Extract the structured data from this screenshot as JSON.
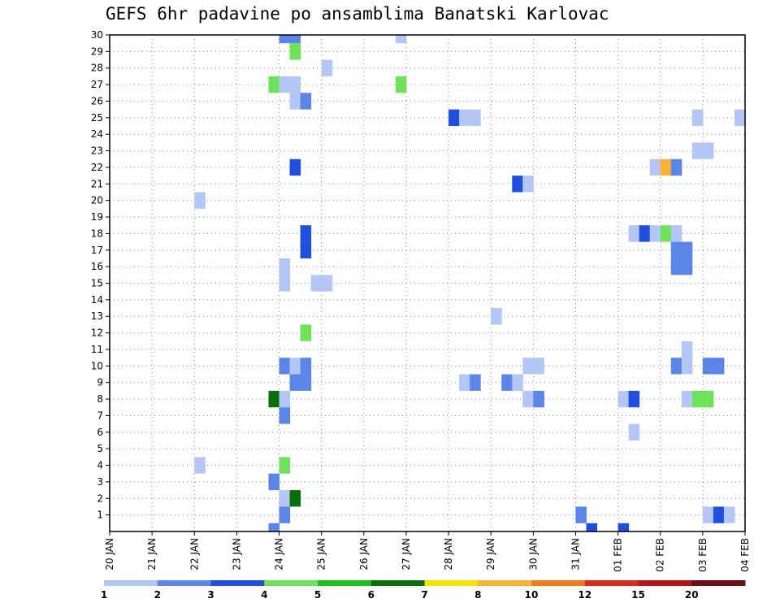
{
  "chart_data": {
    "type": "heatmap",
    "title": "GEFS 6hr padavine po ansamblima Banatski Karlovac",
    "xlabel": "",
    "ylabel": "",
    "x_tick_labels": [
      "20 JAN",
      "21 JAN",
      "22 JAN",
      "23 JAN",
      "24 JAN",
      "25 JAN",
      "26 JAN",
      "27 JAN",
      "28 JAN",
      "29 JAN",
      "30 JAN",
      "31 JAN",
      "01 FEB",
      "02 FEB",
      "03 FEB",
      "04 FEB"
    ],
    "xlim_days": [
      0,
      15
    ],
    "y_tick_labels": [
      "1",
      "2",
      "3",
      "4",
      "5",
      "6",
      "7",
      "8",
      "9",
      "10",
      "11",
      "12",
      "13",
      "14",
      "15",
      "16",
      "17",
      "18",
      "19",
      "20",
      "21",
      "22",
      "23",
      "24",
      "25",
      "26",
      "27",
      "28",
      "29",
      "30"
    ],
    "ylim": [
      0,
      30
    ],
    "grid": true,
    "colorbar": {
      "levels": [
        "1",
        "2",
        "3",
        "4",
        "5",
        "6",
        "7",
        "8",
        "10",
        "12",
        "15",
        "20"
      ],
      "colors": [
        "#b3c6f5",
        "#5b86e8",
        "#1f4fdc",
        "#6ee35a",
        "#1ec21e",
        "#0a6e0a",
        "#f4e600",
        "#f9b233",
        "#f47a20",
        "#dc2a1a",
        "#b4141a",
        "#6e0f14"
      ]
    },
    "cells": [
      {
        "member": 30,
        "day": 4.0,
        "level": 1
      },
      {
        "member": 30,
        "day": 4.25,
        "level": 1
      },
      {
        "member": 30,
        "day": 6.75,
        "level": 0
      },
      {
        "member": 29,
        "day": 4.25,
        "level": 3
      },
      {
        "member": 28,
        "day": 5.0,
        "level": 0
      },
      {
        "member": 27,
        "day": 3.75,
        "level": 3
      },
      {
        "member": 27,
        "day": 4.0,
        "level": 0
      },
      {
        "member": 27,
        "day": 4.25,
        "level": 0
      },
      {
        "member": 27,
        "day": 6.75,
        "level": 3
      },
      {
        "member": 26,
        "day": 4.25,
        "level": 0
      },
      {
        "member": 26,
        "day": 4.5,
        "level": 1
      },
      {
        "member": 25,
        "day": 8.0,
        "level": 2
      },
      {
        "member": 25,
        "day": 8.25,
        "level": 0
      },
      {
        "member": 25,
        "day": 8.5,
        "level": 0
      },
      {
        "member": 25,
        "day": 13.75,
        "level": 0
      },
      {
        "member": 25,
        "day": 14.75,
        "level": 0
      },
      {
        "member": 23,
        "day": 13.75,
        "level": 0
      },
      {
        "member": 23,
        "day": 14.0,
        "level": 0
      },
      {
        "member": 22,
        "day": 4.25,
        "level": 2
      },
      {
        "member": 22,
        "day": 12.75,
        "level": 0
      },
      {
        "member": 22,
        "day": 13.0,
        "level": 7
      },
      {
        "member": 22,
        "day": 13.25,
        "level": 1
      },
      {
        "member": 21,
        "day": 9.5,
        "level": 2
      },
      {
        "member": 21,
        "day": 9.75,
        "level": 0
      },
      {
        "member": 20,
        "day": 2.0,
        "level": 0
      },
      {
        "member": 18,
        "day": 4.5,
        "level": 2
      },
      {
        "member": 18,
        "day": 12.25,
        "level": 0
      },
      {
        "member": 18,
        "day": 12.5,
        "level": 2
      },
      {
        "member": 18,
        "day": 12.75,
        "level": 0
      },
      {
        "member": 18,
        "day": 13.0,
        "level": 3
      },
      {
        "member": 18,
        "day": 13.25,
        "level": 0
      },
      {
        "member": 17,
        "day": 4.5,
        "level": 2
      },
      {
        "member": 17,
        "day": 13.25,
        "level": 1
      },
      {
        "member": 17,
        "day": 13.5,
        "level": 1
      },
      {
        "member": 16,
        "day": 4.0,
        "level": 0
      },
      {
        "member": 16,
        "day": 13.25,
        "level": 1
      },
      {
        "member": 16,
        "day": 13.5,
        "level": 1
      },
      {
        "member": 15,
        "day": 4.0,
        "level": 0
      },
      {
        "member": 15,
        "day": 4.75,
        "level": 0
      },
      {
        "member": 15,
        "day": 5.0,
        "level": 0
      },
      {
        "member": 13,
        "day": 9.0,
        "level": 0
      },
      {
        "member": 12,
        "day": 4.5,
        "level": 3
      },
      {
        "member": 11,
        "day": 13.5,
        "level": 0
      },
      {
        "member": 10,
        "day": 4.0,
        "level": 1
      },
      {
        "member": 10,
        "day": 4.25,
        "level": 0
      },
      {
        "member": 10,
        "day": 4.5,
        "level": 1
      },
      {
        "member": 10,
        "day": 9.75,
        "level": 0
      },
      {
        "member": 10,
        "day": 10.0,
        "level": 0
      },
      {
        "member": 10,
        "day": 13.25,
        "level": 1
      },
      {
        "member": 10,
        "day": 13.5,
        "level": 0
      },
      {
        "member": 10,
        "day": 14.0,
        "level": 1
      },
      {
        "member": 10,
        "day": 14.25,
        "level": 1
      },
      {
        "member": 9,
        "day": 4.25,
        "level": 1
      },
      {
        "member": 9,
        "day": 4.5,
        "level": 1
      },
      {
        "member": 9,
        "day": 8.25,
        "level": 0
      },
      {
        "member": 9,
        "day": 8.5,
        "level": 1
      },
      {
        "member": 9,
        "day": 9.25,
        "level": 1
      },
      {
        "member": 9,
        "day": 9.5,
        "level": 0
      },
      {
        "member": 8,
        "day": 3.75,
        "level": 5
      },
      {
        "member": 8,
        "day": 4.0,
        "level": 0
      },
      {
        "member": 8,
        "day": 9.75,
        "level": 0
      },
      {
        "member": 8,
        "day": 10.0,
        "level": 1
      },
      {
        "member": 8,
        "day": 12.0,
        "level": 0
      },
      {
        "member": 8,
        "day": 12.25,
        "level": 2
      },
      {
        "member": 8,
        "day": 13.5,
        "level": 0
      },
      {
        "member": 8,
        "day": 13.75,
        "level": 3
      },
      {
        "member": 8,
        "day": 14.0,
        "level": 3
      },
      {
        "member": 7,
        "day": 4.0,
        "level": 1
      },
      {
        "member": 6,
        "day": 12.25,
        "level": 0
      },
      {
        "member": 4,
        "day": 2.0,
        "level": 0
      },
      {
        "member": 4,
        "day": 4.0,
        "level": 3
      },
      {
        "member": 3,
        "day": 3.75,
        "level": 1
      },
      {
        "member": 2,
        "day": 4.0,
        "level": 0
      },
      {
        "member": 2,
        "day": 4.25,
        "level": 5
      },
      {
        "member": 1,
        "day": 4.0,
        "level": 1
      },
      {
        "member": 1,
        "day": 11.0,
        "level": 1
      },
      {
        "member": 1,
        "day": 14.0,
        "level": 0
      },
      {
        "member": 1,
        "day": 14.25,
        "level": 2
      },
      {
        "member": 1,
        "day": 14.5,
        "level": 0
      },
      {
        "member": 0,
        "day": 3.75,
        "level": 1
      },
      {
        "member": 0,
        "day": 11.25,
        "level": 2
      },
      {
        "member": 0,
        "day": 12.0,
        "level": 2
      }
    ]
  }
}
